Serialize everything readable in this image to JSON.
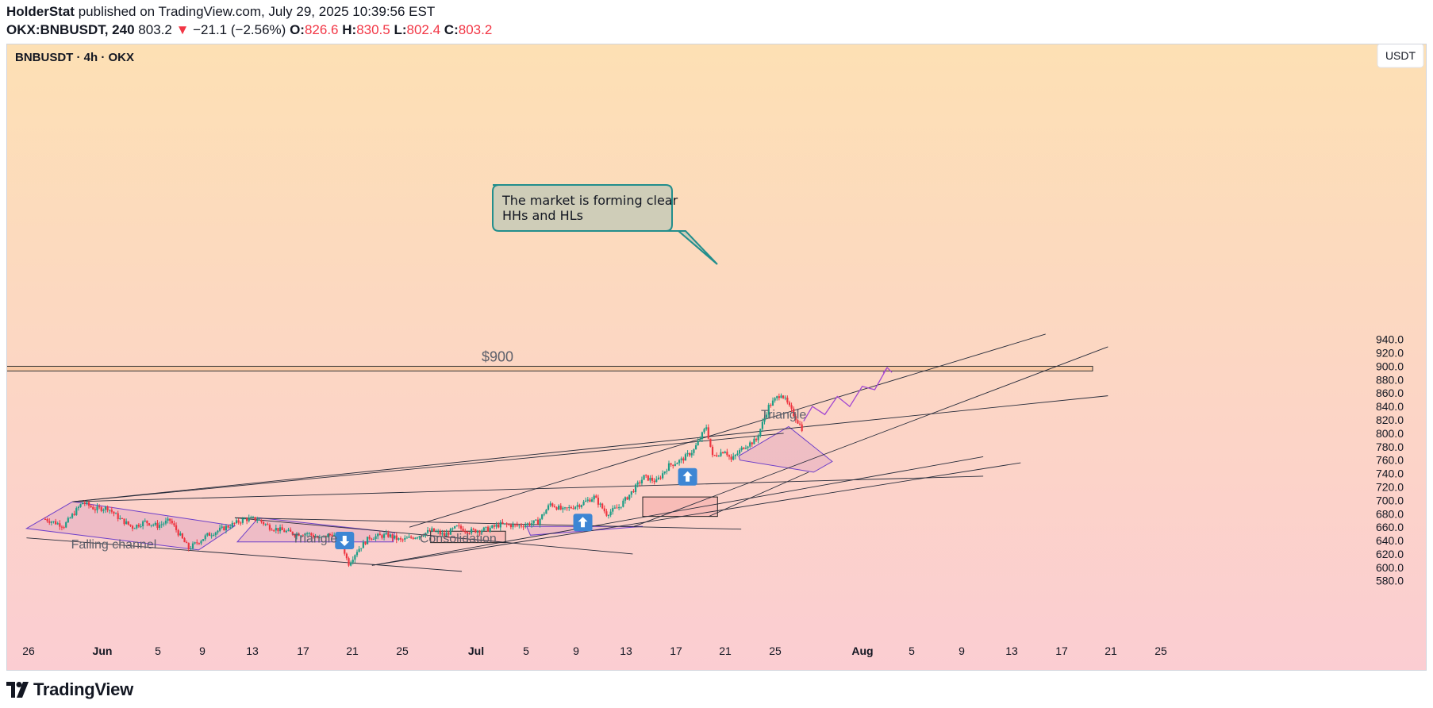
{
  "header": {
    "author": "HolderStat",
    "published_text": "published on TradingView.com, July 29, 2025 10:39:56 EST",
    "symbol": "OKX:BNBUSDT, 240",
    "last": "803.2",
    "change_arrow": "▼",
    "change": "−21.1 (−2.56%)",
    "o_label": "O:",
    "o_value": "826.6",
    "h_label": "H:",
    "h_value": "830.5",
    "l_label": "L:",
    "l_value": "802.4",
    "c_label": "C:",
    "c_value": "803.2"
  },
  "chart_title": "BNBUSDT · 4h · OKX",
  "currency_badge": "USDT",
  "footer": {
    "brand": "TradingView"
  },
  "colors": {
    "bg_top": "#fde0b4",
    "bg_bottom": "#fbcdd2",
    "up": "#1e9e87",
    "down": "#ee3540",
    "pattern_stroke": "#6d3fc9",
    "pattern_fill": "#e0a8b8",
    "trendline": "#262b3a",
    "callout_fill": "#cfcdb8",
    "callout_stroke": "#228e8c",
    "arrow_badge": "#3d86d4",
    "projection": "#a348d1"
  },
  "chart_data": {
    "type": "candlestick",
    "symbol": "BNBUSDT",
    "timeframe": "4h",
    "exchange": "OKX",
    "y_ticks": [
      580,
      600,
      620,
      640,
      660,
      680,
      700,
      720,
      740,
      760,
      780,
      800,
      820,
      840,
      860,
      880,
      900,
      920,
      940
    ],
    "ylim": [
      572,
      960
    ],
    "x_ticks": [
      "26",
      "Jun",
      "5",
      "9",
      "13",
      "17",
      "21",
      "25",
      "Jul",
      "5",
      "9",
      "13",
      "17",
      "21",
      "25",
      "Aug",
      "5",
      "9",
      "13",
      "17",
      "21",
      "25"
    ],
    "x_tick_bold": [
      false,
      true,
      false,
      false,
      false,
      false,
      false,
      false,
      true,
      false,
      false,
      false,
      false,
      false,
      false,
      true,
      false,
      false,
      false,
      false,
      false,
      false
    ],
    "last_price": 803.2,
    "resistance_zone": {
      "label": "$900",
      "low": 893,
      "high": 900
    },
    "price_path": [
      [
        0,
        672
      ],
      [
        1.5,
        662
      ],
      [
        3,
        697
      ],
      [
        4,
        687
      ],
      [
        5,
        689
      ],
      [
        6,
        672
      ],
      [
        7,
        660
      ],
      [
        8,
        668
      ],
      [
        9,
        662
      ],
      [
        10,
        670
      ],
      [
        11.5,
        628
      ],
      [
        13,
        648
      ],
      [
        14,
        656
      ],
      [
        16,
        672
      ],
      [
        17,
        672
      ],
      [
        18,
        660
      ],
      [
        19,
        655
      ],
      [
        20,
        650
      ],
      [
        21,
        651
      ],
      [
        22,
        643
      ],
      [
        23,
        650
      ],
      [
        23.8,
        635
      ],
      [
        24.3,
        605
      ],
      [
        25,
        625
      ],
      [
        26,
        645
      ],
      [
        27.5,
        648
      ],
      [
        28.5,
        640
      ],
      [
        30,
        648
      ],
      [
        31,
        655
      ],
      [
        32,
        648
      ],
      [
        33,
        660
      ],
      [
        34,
        654
      ],
      [
        35.5,
        657
      ],
      [
        36.5,
        664
      ],
      [
        38,
        662
      ],
      [
        39.5,
        668
      ],
      [
        40.5,
        695
      ],
      [
        41.5,
        685
      ],
      [
        43,
        695
      ],
      [
        44,
        705
      ],
      [
        45,
        680
      ],
      [
        46,
        690
      ],
      [
        47,
        712
      ],
      [
        48,
        735
      ],
      [
        49,
        728
      ],
      [
        50,
        752
      ],
      [
        51,
        760
      ],
      [
        52,
        775
      ],
      [
        53,
        810
      ],
      [
        53.5,
        765
      ],
      [
        54.5,
        775
      ],
      [
        55,
        760
      ],
      [
        56,
        780
      ],
      [
        57,
        790
      ],
      [
        58,
        840
      ],
      [
        59,
        860
      ],
      [
        60,
        828
      ],
      [
        60.8,
        803
      ]
    ],
    "projection_path": [
      [
        60.8,
        818
      ],
      [
        61.5,
        840
      ],
      [
        62.5,
        828
      ],
      [
        63.5,
        855
      ],
      [
        64.5,
        840
      ],
      [
        65.5,
        870
      ],
      [
        66.5,
        865
      ],
      [
        67.5,
        898
      ]
    ],
    "annotations": [
      {
        "text": "Falling channel"
      },
      {
        "text": "Triangle"
      },
      {
        "text": "Consolidation"
      },
      {
        "text": "Triangle"
      },
      {
        "text": "$900"
      },
      {
        "text": "The market is forming clear HHs and HLs"
      }
    ],
    "callout_lines": [
      "The market is forming clear",
      "HHs and HLs"
    ]
  }
}
